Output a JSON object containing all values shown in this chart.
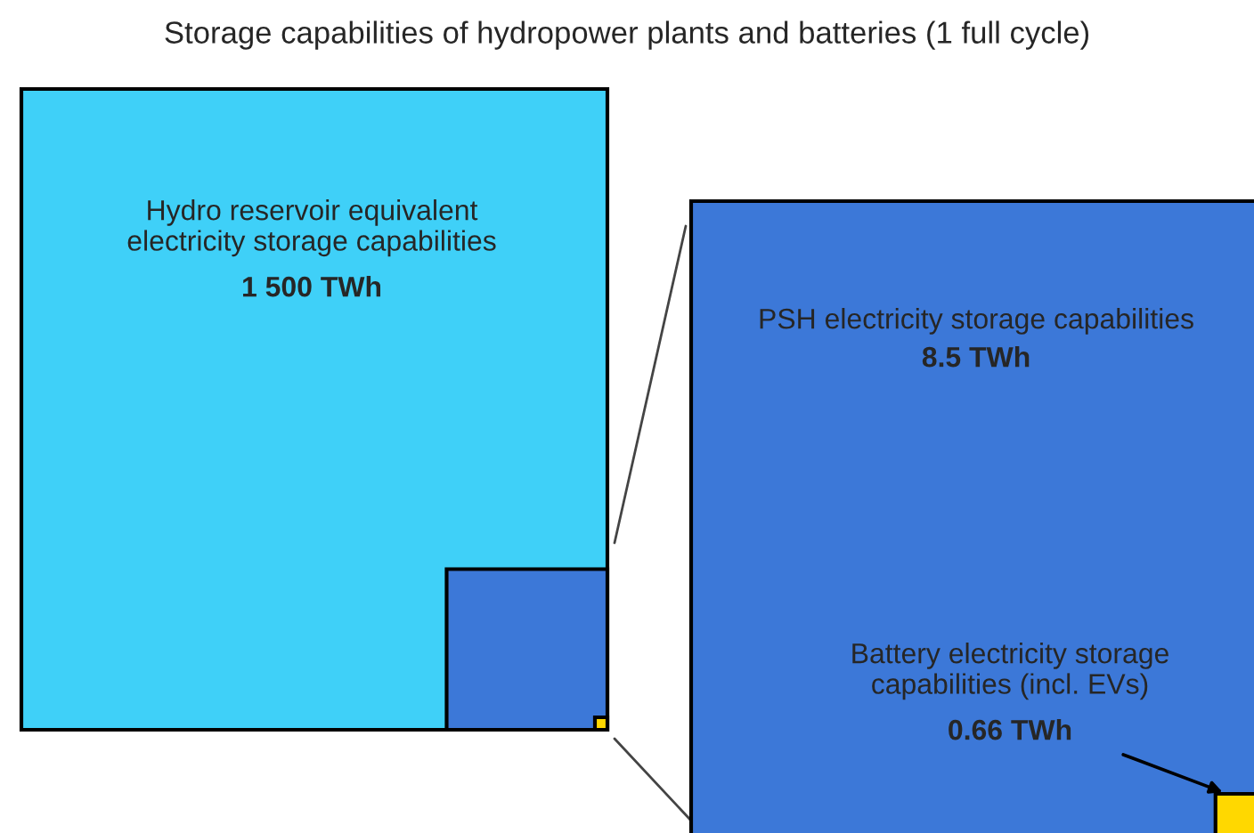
{
  "chart_data": {
    "type": "other",
    "title": "Storage capabilities of hydropower plants and batteries (1 full cycle)",
    "categories": [
      "Hydro reservoir equivalent\nelectricity storage capabilities",
      "PSH electricity storage capabilities",
      "Battery electricity storage\ncapabilities (incl. EVs)"
    ],
    "values": [
      1500,
      8.5,
      0.66
    ],
    "value_labels": [
      "1 500 TWh",
      "8.5 TWh",
      "0.66 TWh"
    ],
    "colors": [
      "#3fd0f8",
      "#3c78d8",
      "#ffd800"
    ]
  }
}
